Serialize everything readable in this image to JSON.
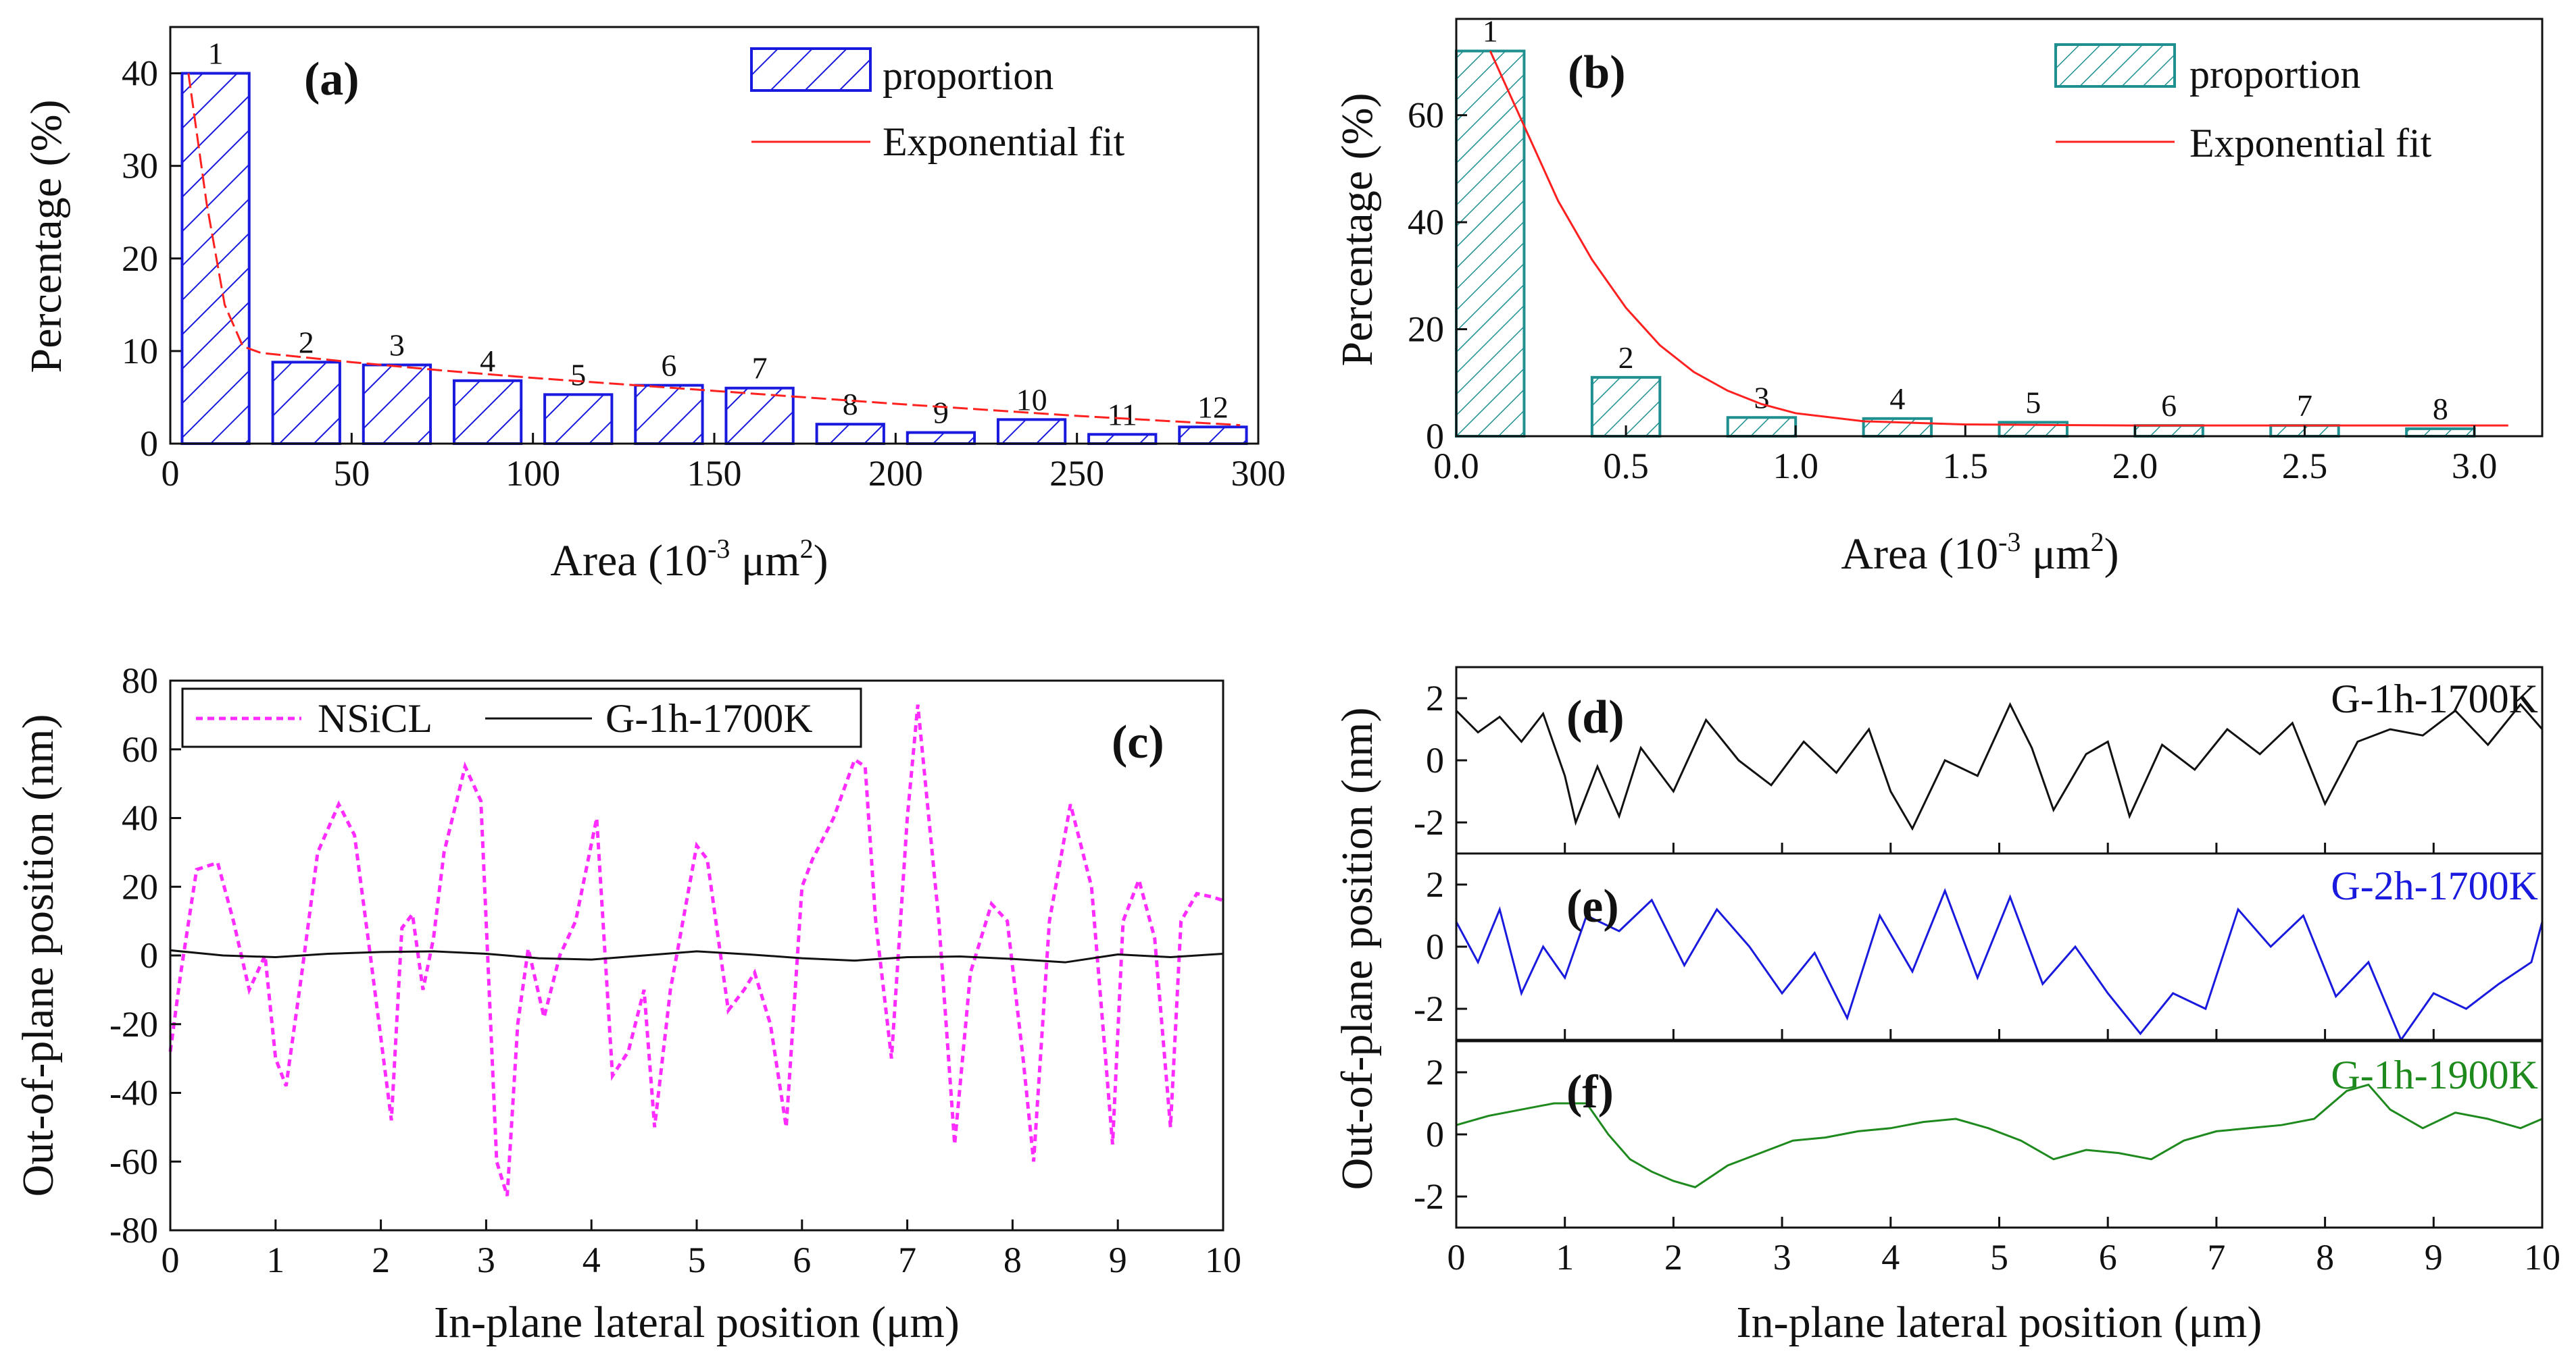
{
  "chart_data": [
    {
      "id": "a",
      "type": "bar",
      "panel_label": "(a)",
      "categories": [
        "1",
        "2",
        "3",
        "4",
        "5",
        "6",
        "7",
        "8",
        "9",
        "10",
        "11",
        "12"
      ],
      "x": [
        12.5,
        37.5,
        62.5,
        87.5,
        112.5,
        137.5,
        162.5,
        187.5,
        212.5,
        237.5,
        262.5,
        287.5
      ],
      "values": [
        40,
        8.8,
        8.5,
        6.8,
        5.3,
        6.3,
        6.0,
        2.1,
        1.2,
        2.6,
        1.0,
        1.8
      ],
      "fit": {
        "name": "Exponential fit",
        "x": [
          5,
          10,
          15,
          20,
          25,
          35,
          50,
          75,
          100,
          150,
          200,
          250,
          295
        ],
        "y": [
          40,
          26,
          15,
          10.5,
          9.8,
          9.4,
          8.8,
          7.9,
          7.1,
          5.7,
          4.3,
          3.0,
          2.0
        ]
      },
      "legend": [
        "proportion",
        "Exponential fit"
      ],
      "xlabel": "Area (10",
      "xlabel_sup1": "-3",
      "xlabel_mid": " μm",
      "xlabel_sup2": "2",
      "xlabel_end": ")",
      "ylabel": "Percentage (%)",
      "xlim": [
        0,
        300
      ],
      "ylim": [
        0,
        45
      ],
      "xticks": [
        0,
        50,
        100,
        150,
        200,
        250,
        300
      ],
      "yticks": [
        0,
        10,
        20,
        30,
        40
      ],
      "color": "#1a1adf"
    },
    {
      "id": "b",
      "type": "bar",
      "panel_label": "(b)",
      "categories": [
        "1",
        "2",
        "3",
        "4",
        "5",
        "6",
        "7",
        "8"
      ],
      "x": [
        0.2,
        0.6,
        1.0,
        1.4,
        1.8,
        2.2,
        2.6,
        3.0
      ],
      "values": [
        72,
        11,
        3.5,
        3.3,
        2.6,
        2.0,
        2.0,
        1.4
      ],
      "fit": {
        "name": "Exponential  fit",
        "x": [
          0.1,
          0.2,
          0.3,
          0.4,
          0.5,
          0.6,
          0.7,
          0.8,
          0.9,
          1.0,
          1.2,
          1.5,
          2.0,
          2.5,
          3.0,
          3.1
        ],
        "y": [
          72,
          58,
          44,
          33,
          24,
          17,
          12,
          8.5,
          6,
          4.3,
          2.8,
          2.2,
          2.0,
          2.0,
          2.0,
          2.0
        ]
      },
      "legend": [
        "proportion",
        "Exponential  fit"
      ],
      "xlabel": "Area (10",
      "xlabel_sup1": "-3",
      "xlabel_mid": " μm",
      "xlabel_sup2": "2",
      "xlabel_end": ")",
      "ylabel": "Percentage (%)",
      "xlim": [
        0,
        3.2
      ],
      "ylim": [
        0,
        78
      ],
      "xticks": [
        0.0,
        0.5,
        1.0,
        1.5,
        2.0,
        2.5,
        3.0
      ],
      "xtick_labels": [
        "0.0",
        "0.5",
        "1.0",
        "1.5",
        "2.0",
        "2.5",
        "3.0"
      ],
      "yticks": [
        0,
        20,
        40,
        60
      ],
      "color": "#1f8f8f"
    },
    {
      "id": "c",
      "type": "line",
      "panel_label": "(c)",
      "series": [
        {
          "name": "NSiCL",
          "color": "#ff2cff",
          "dashed": true,
          "x": [
            0,
            0.1,
            0.25,
            0.45,
            0.6,
            0.75,
            0.9,
            1.0,
            1.1,
            1.25,
            1.4,
            1.6,
            1.75,
            1.9,
            2.1,
            2.2,
            2.3,
            2.4,
            2.5,
            2.6,
            2.8,
            2.95,
            3.1,
            3.2,
            3.3,
            3.4,
            3.55,
            3.7,
            3.85,
            4.05,
            4.2,
            4.35,
            4.5,
            4.6,
            4.75,
            5.0,
            5.1,
            5.3,
            5.45,
            5.55,
            5.7,
            5.85,
            6.0,
            6.1,
            6.3,
            6.5,
            6.6,
            6.7,
            6.85,
            7.0,
            7.1,
            7.3,
            7.45,
            7.6,
            7.8,
            7.95,
            8.1,
            8.2,
            8.35,
            8.55,
            8.75,
            8.95,
            9.05,
            9.2,
            9.35,
            9.5,
            9.6,
            9.75,
            9.9,
            10
          ],
          "y": [
            -28,
            -5,
            25,
            27,
            10,
            -10,
            0,
            -30,
            -38,
            -5,
            30,
            44,
            35,
            0,
            -48,
            8,
            12,
            -10,
            5,
            30,
            55,
            45,
            -60,
            -70,
            -20,
            2,
            -18,
            0,
            10,
            40,
            -35,
            -28,
            -10,
            -50,
            -10,
            32,
            28,
            -16,
            -10,
            -5,
            -20,
            -50,
            20,
            28,
            40,
            57,
            55,
            10,
            -30,
            40,
            73,
            10,
            -55,
            -5,
            15,
            10,
            -30,
            -60,
            10,
            44,
            20,
            -55,
            10,
            22,
            5,
            -50,
            10,
            18,
            17,
            16
          ]
        },
        {
          "name": "G-1h-1700K",
          "color": "#111111",
          "dashed": false,
          "x": [
            0,
            0.5,
            1.0,
            1.5,
            2.0,
            2.5,
            3.0,
            3.5,
            4.0,
            4.5,
            5.0,
            5.5,
            6.0,
            6.5,
            7.0,
            7.5,
            8.0,
            8.5,
            9.0,
            9.5,
            10
          ],
          "y": [
            1.5,
            0,
            -0.5,
            0.5,
            1.0,
            1.2,
            0.5,
            -0.8,
            -1.2,
            0,
            1.2,
            0.3,
            -0.8,
            -1.5,
            -0.5,
            -0.3,
            -1.0,
            -2.0,
            0.3,
            -0.5,
            0.5
          ]
        }
      ],
      "legend": [
        "NSiCL",
        "G-1h-1700K"
      ],
      "xlabel": "In-plane lateral position (μm)",
      "ylabel": "Out-of-plane position (nm)",
      "xlim": [
        0,
        10
      ],
      "ylim": [
        -80,
        80
      ],
      "xticks": [
        0,
        1,
        2,
        3,
        4,
        5,
        6,
        7,
        8,
        9,
        10
      ],
      "yticks": [
        -80,
        -60,
        -40,
        -20,
        0,
        20,
        40,
        60,
        80
      ]
    },
    {
      "id": "def",
      "type": "line",
      "stacked": true,
      "xlabel": "In-plane lateral position (μm)",
      "ylabel": "Out-of-plane position (nm)",
      "xlim": [
        0,
        10
      ],
      "xticks": [
        0,
        1,
        2,
        3,
        4,
        5,
        6,
        7,
        8,
        9,
        10
      ],
      "panels": [
        {
          "panel_label": "(d)",
          "name": "G-1h-1700K",
          "color": "#111111",
          "ylim": [
            -3,
            3
          ],
          "yticks": [
            -2,
            0,
            2
          ],
          "x": [
            0,
            0.2,
            0.4,
            0.6,
            0.8,
            1.0,
            1.1,
            1.3,
            1.5,
            1.7,
            2.0,
            2.3,
            2.6,
            2.9,
            3.2,
            3.5,
            3.8,
            4.0,
            4.2,
            4.5,
            4.8,
            5.1,
            5.3,
            5.5,
            5.8,
            6.0,
            6.2,
            6.5,
            6.8,
            7.1,
            7.4,
            7.7,
            8.0,
            8.3,
            8.6,
            8.9,
            9.2,
            9.5,
            9.8,
            10
          ],
          "y": [
            1.6,
            0.9,
            1.4,
            0.6,
            1.5,
            -0.5,
            -2.0,
            -0.2,
            -1.8,
            0.4,
            -1.0,
            1.3,
            0.0,
            -0.8,
            0.6,
            -0.4,
            1.0,
            -1.0,
            -2.2,
            0.0,
            -0.5,
            1.8,
            0.4,
            -1.6,
            0.2,
            0.6,
            -1.8,
            0.5,
            -0.3,
            1.0,
            0.2,
            1.2,
            -1.4,
            0.6,
            1.0,
            0.8,
            1.6,
            0.5,
            1.8,
            1.0
          ]
        },
        {
          "panel_label": "(e)",
          "name": "G-2h-1700K",
          "color": "#1a1adf",
          "ylim": [
            -3,
            3
          ],
          "yticks": [
            -2,
            0,
            2
          ],
          "x": [
            0,
            0.2,
            0.4,
            0.6,
            0.8,
            1.0,
            1.2,
            1.5,
            1.8,
            2.1,
            2.4,
            2.7,
            3.0,
            3.3,
            3.6,
            3.9,
            4.2,
            4.5,
            4.8,
            5.1,
            5.4,
            5.7,
            6.0,
            6.3,
            6.6,
            6.9,
            7.2,
            7.5,
            7.8,
            8.1,
            8.4,
            8.7,
            9.0,
            9.3,
            9.6,
            9.9,
            10
          ],
          "y": [
            0.8,
            -0.5,
            1.2,
            -1.5,
            0.0,
            -1.0,
            1.0,
            0.5,
            1.5,
            -0.6,
            1.2,
            0.0,
            -1.5,
            -0.2,
            -2.3,
            1.0,
            -0.8,
            1.8,
            -1.0,
            1.6,
            -1.2,
            0.0,
            -1.5,
            -2.8,
            -1.5,
            -2.0,
            1.2,
            0.0,
            1.0,
            -1.6,
            -0.5,
            -3.0,
            -1.5,
            -2.0,
            -1.2,
            -0.5,
            0.8
          ]
        },
        {
          "panel_label": "(f)",
          "name": "G-1h-1900K",
          "color": "#1e8a1e",
          "ylim": [
            -3,
            3
          ],
          "yticks": [
            -2,
            0,
            2
          ],
          "x": [
            0,
            0.3,
            0.6,
            0.9,
            1.2,
            1.4,
            1.6,
            1.8,
            2.0,
            2.2,
            2.5,
            2.8,
            3.1,
            3.4,
            3.7,
            4.0,
            4.3,
            4.6,
            4.9,
            5.2,
            5.5,
            5.8,
            6.1,
            6.4,
            6.7,
            7.0,
            7.3,
            7.6,
            7.9,
            8.2,
            8.4,
            8.6,
            8.9,
            9.2,
            9.5,
            9.8,
            10
          ],
          "y": [
            0.3,
            0.6,
            0.8,
            1.0,
            1.0,
            0.0,
            -0.8,
            -1.2,
            -1.5,
            -1.7,
            -1.0,
            -0.6,
            -0.2,
            -0.1,
            0.1,
            0.2,
            0.4,
            0.5,
            0.2,
            -0.2,
            -0.8,
            -0.5,
            -0.6,
            -0.8,
            -0.2,
            0.1,
            0.2,
            0.3,
            0.5,
            1.4,
            1.6,
            0.8,
            0.2,
            0.7,
            0.5,
            0.2,
            0.5
          ]
        }
      ]
    }
  ]
}
